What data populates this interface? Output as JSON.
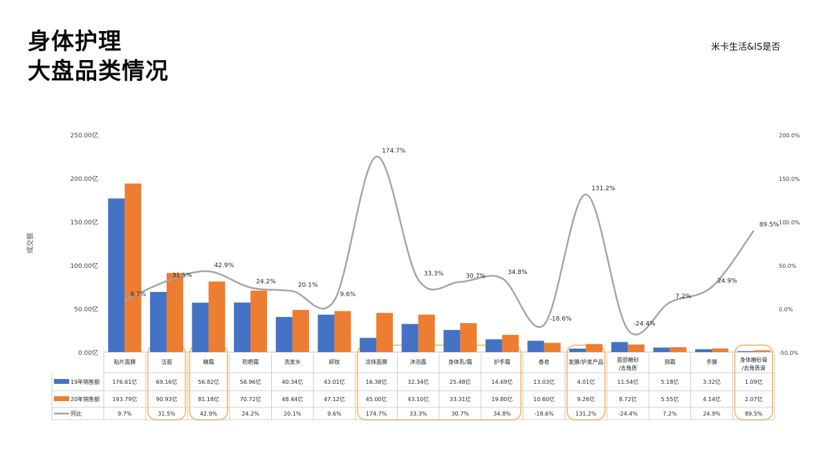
{
  "title": {
    "line1": "身体护理",
    "line2": "大盘品类情况"
  },
  "brand": "米卡生活&IS是否",
  "colors": {
    "series_2019": "#4472C4",
    "series_2020": "#ED7D31",
    "yoy_line": "#A5A5A5",
    "highlight": "#F5C27A"
  },
  "chart_data": {
    "type": "bar",
    "title": "",
    "ylabel": "成交额",
    "ylim": [
      0,
      250
    ],
    "y2lim": [
      -50,
      200
    ],
    "y_ticks": [
      "0.00亿",
      "50.00亿",
      "100.00亿",
      "150.00亿",
      "200.00亿",
      "250.00亿"
    ],
    "y2_ticks": [
      "-50.0%",
      "0.0%",
      "50.0%",
      "100.0%",
      "150.0%",
      "200.0%"
    ],
    "categories": [
      "贴片面膜",
      "洁面",
      "精霜",
      "防晒霜",
      "洗发水",
      "卸妆",
      "涂抹面膜",
      "沐浴露",
      "身体乳/霜",
      "护手霜",
      "香皂",
      "发膜/护发产品",
      "面部磨砂/去角质",
      "颈霜",
      "手膜",
      "身体磨砂膏/去角质膏"
    ],
    "series": [
      {
        "name": "19年销售额",
        "type": "bar",
        "values": [
          176.61,
          69.16,
          56.82,
          56.96,
          40.34,
          43.01,
          16.38,
          32.34,
          25.48,
          14.69,
          13.03,
          4.01,
          11.54,
          5.18,
          3.32,
          1.09
        ],
        "labels": [
          "176.61亿",
          "69.16亿",
          "56.82亿",
          "56.96亿",
          "40.34亿",
          "43.01亿",
          "16.38亿",
          "32.34亿",
          "25.48亿",
          "14.69亿",
          "13.03亿",
          "4.01亿",
          "11.54亿",
          "5.18亿",
          "3.32亿",
          "1.09亿"
        ]
      },
      {
        "name": "20年销售额",
        "type": "bar",
        "values": [
          193.79,
          90.93,
          81.18,
          70.72,
          48.44,
          47.12,
          45.0,
          43.1,
          33.31,
          19.8,
          10.6,
          9.26,
          8.72,
          5.55,
          4.14,
          2.07
        ],
        "labels": [
          "193.79亿",
          "90.93亿",
          "81.18亿",
          "70.72亿",
          "48.44亿",
          "47.12亿",
          "45.00亿",
          "43.10亿",
          "33.31亿",
          "19.80亿",
          "10.60亿",
          "9.26亿",
          "8.72亿",
          "5.55亿",
          "4.14亿",
          "2.07亿"
        ]
      },
      {
        "name": "同比",
        "type": "line",
        "axis": "right",
        "values": [
          9.7,
          31.5,
          42.9,
          24.2,
          20.1,
          9.6,
          174.7,
          33.3,
          30.7,
          34.8,
          -18.6,
          131.2,
          -24.4,
          7.2,
          24.9,
          89.5
        ],
        "labels": [
          "9.7%",
          "31.5%",
          "42.9%",
          "24.2%",
          "20.1%",
          "9.6%",
          "174.7%",
          "33.3%",
          "30.7%",
          "34.8%",
          "-18.6%",
          "131.2%",
          "-24.4%",
          "7.2%",
          "24.9%",
          "89.5%"
        ]
      }
    ],
    "highlighted_categories": [
      "洁面",
      "精霜",
      "涂抹面膜",
      "沐浴露",
      "身体乳/霜",
      "护手霜",
      "发膜/护发产品",
      "身体磨砂膏/去角质膏"
    ],
    "legend_placement": "table-left",
    "grid": false
  }
}
